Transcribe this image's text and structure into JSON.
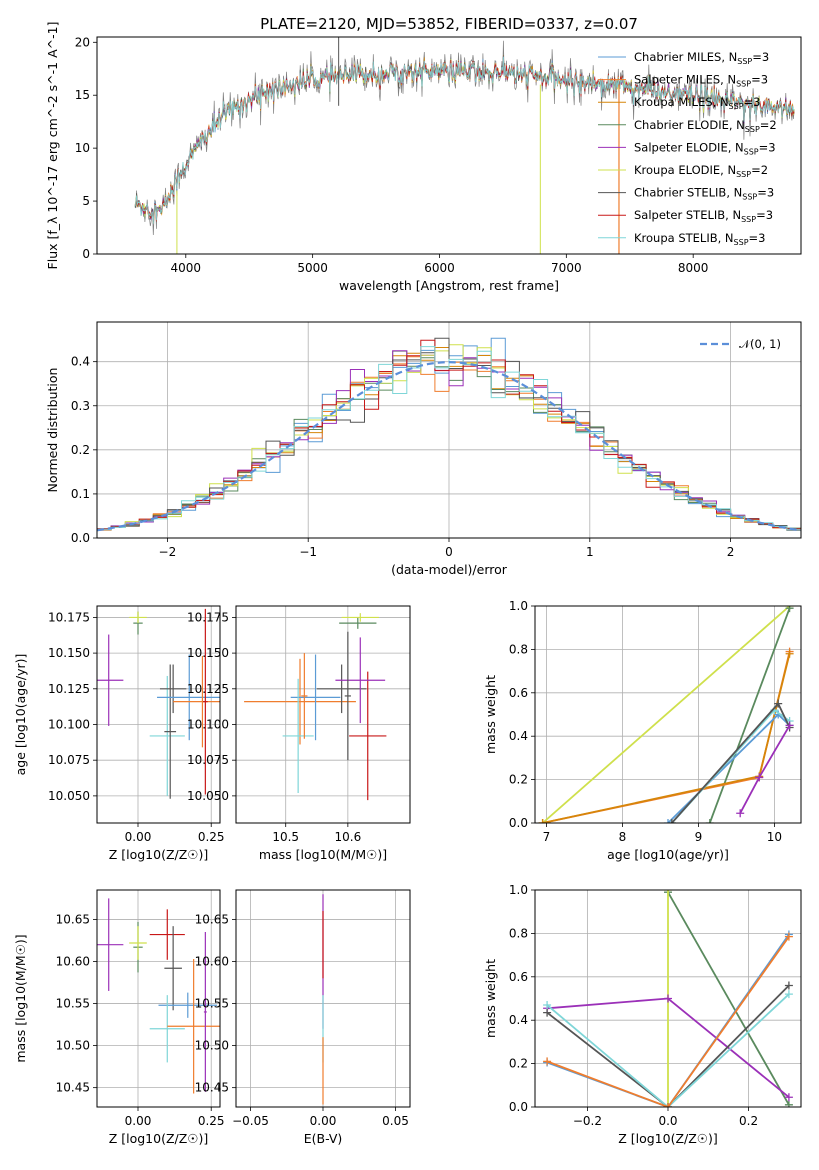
{
  "colors": {
    "chabrier_miles": "#5b9bd5",
    "salpeter_miles": "#ef7d2e",
    "kroupa_miles": "#d6860a",
    "chabrier_elodie": "#5a8a5e",
    "salpeter_elodie": "#9b30b8",
    "kroupa_elodie": "#cfe04c",
    "chabrier_stelib": "#555555",
    "salpeter_stelib": "#c81818",
    "kroupa_stelib": "#7fd6d8",
    "normal": "#5b8fd9"
  },
  "chart_data": [
    {
      "id": "spectrum",
      "type": "line",
      "title": "PLATE=2120, MJD=53852, FIBERID=0337, z=0.07",
      "xlabel": "wavelength [Angstrom, rest frame]",
      "ylabel": "Flux [f_λ 10^-17 erg cm^-2 s^-1 A^-1]",
      "xlim": [
        3300,
        8850
      ],
      "ylim": [
        0,
        20.5
      ],
      "xticks": [
        "4000",
        "5000",
        "6000",
        "7000",
        "8000"
      ],
      "yticks": [
        "0",
        "5",
        "10",
        "15",
        "20"
      ],
      "grid": false,
      "legend_position": "top-right",
      "continuum_x": [
        3600,
        3800,
        3950,
        4100,
        4300,
        4600,
        5000,
        5400,
        6000,
        6500,
        7000,
        7400,
        7800,
        8400,
        8800
      ],
      "continuum_y": [
        4.8,
        3.9,
        7.5,
        10.3,
        13.2,
        15.2,
        16.5,
        17.0,
        17.3,
        17.2,
        16.4,
        16.0,
        15.2,
        14.2,
        13.7
      ],
      "series": [
        {
          "key": "chabrier_miles",
          "name": "Chabrier MILES, N",
          "sub": "SSP",
          "suffix": "=3"
        },
        {
          "key": "salpeter_miles",
          "name": "Salpeter MILES, N",
          "sub": "SSP",
          "suffix": "=3"
        },
        {
          "key": "kroupa_miles",
          "name": "Kroupa MILES, N",
          "sub": "SSP",
          "suffix": "=3"
        },
        {
          "key": "chabrier_elodie",
          "name": "Chabrier ELODIE, N",
          "sub": "SSP",
          "suffix": "=2"
        },
        {
          "key": "salpeter_elodie",
          "name": "Salpeter ELODIE, N",
          "sub": "SSP",
          "suffix": "=3"
        },
        {
          "key": "kroupa_elodie",
          "name": "Kroupa ELODIE, N",
          "sub": "SSP",
          "suffix": "=2"
        },
        {
          "key": "chabrier_stelib",
          "name": "Chabrier STELIB, N",
          "sub": "SSP",
          "suffix": "=3"
        },
        {
          "key": "salpeter_stelib",
          "name": "Salpeter STELIB, N",
          "sub": "SSP",
          "suffix": "=3"
        },
        {
          "key": "kroupa_stelib",
          "name": "Kroupa STELIB, N",
          "sub": "SSP",
          "suffix": "=3"
        }
      ]
    },
    {
      "id": "residuals",
      "type": "step",
      "xlabel": "(data-model)/error",
      "ylabel": "Normed distribution",
      "xlim": [
        -2.5,
        2.5
      ],
      "ylim": [
        0,
        0.49
      ],
      "xticks": [
        "−2",
        "−1",
        "0",
        "1",
        "2"
      ],
      "yticks": [
        "0.0",
        "0.1",
        "0.2",
        "0.3",
        "0.4"
      ],
      "grid": true,
      "legend": "𝒩(0, 1)",
      "legend_position": "top-right",
      "bin_width": 0.1
    },
    {
      "id": "age_vs_Z",
      "type": "errorbar",
      "xlabel": "Z [log10(Z/Z☉)]",
      "ylabel": "age [log10(age/yr)]",
      "xlim": [
        -0.14,
        0.28
      ],
      "ylim": [
        10.031,
        10.183
      ],
      "xticks": [
        "0.00",
        "0.25"
      ],
      "yticks": [
        "10.050",
        "10.075",
        "10.100",
        "10.125",
        "10.150",
        "10.175"
      ],
      "grid": true,
      "points": [
        {
          "key": "salpeter_elodie",
          "x": -0.1,
          "y": 10.131,
          "xerr": 0.05,
          "yerr": 0.032
        },
        {
          "key": "chabrier_elodie",
          "x": 0.0,
          "y": 10.171,
          "xerr": 0.016,
          "yerr": 0.008
        },
        {
          "key": "kroupa_elodie",
          "x": 0.0,
          "y": 10.175,
          "xerr": 0.03,
          "yerr": 0.004
        },
        {
          "key": "kroupa_stelib",
          "x": 0.1,
          "y": 10.092,
          "xerr": 0.06,
          "yerr": 0.042
        },
        {
          "key": "chabrier_stelib",
          "x": 0.12,
          "y": 10.125,
          "xerr": 0.045,
          "yerr": 0.017
        },
        {
          "key": "chabrier_stelib",
          "x": 0.11,
          "y": 10.095,
          "xerr": 0.02,
          "yerr": 0.047
        },
        {
          "key": "chabrier_miles",
          "x": 0.175,
          "y": 10.119,
          "xerr": 0.11,
          "yerr": 0.03
        },
        {
          "key": "salpeter_miles",
          "x": 0.22,
          "y": 10.116,
          "xerr": 0.1,
          "yerr": 0.032
        },
        {
          "key": "salpeter_stelib",
          "x": 0.23,
          "y": 10.116,
          "xerr": 0.008,
          "yerr": 0.065
        }
      ]
    },
    {
      "id": "age_vs_mass",
      "type": "errorbar",
      "xlabel": "mass [log10(M/M☉)]",
      "ylabel": "",
      "xlim": [
        10.42,
        10.7
      ],
      "ylim": [
        10.031,
        10.183
      ],
      "xticks": [
        "10.5",
        "10.6"
      ],
      "yticks": [
        "10.050",
        "10.075",
        "10.100",
        "10.125",
        "10.150",
        "10.175"
      ],
      "grid": true,
      "points": [
        {
          "key": "salpeter_miles",
          "x": 10.523,
          "y": 10.116,
          "xerr": 0.09,
          "yerr": 0.03
        },
        {
          "key": "chabrier_miles",
          "x": 10.548,
          "y": 10.119,
          "xerr": 0.04,
          "yerr": 0.03
        },
        {
          "key": "kroupa_stelib",
          "x": 10.52,
          "y": 10.092,
          "xerr": 0.025,
          "yerr": 0.04
        },
        {
          "key": "chabrier_stelib",
          "x": 10.59,
          "y": 10.125,
          "xerr": 0.04,
          "yerr": 0.017
        },
        {
          "key": "salpeter_stelib",
          "x": 10.632,
          "y": 10.092,
          "xerr": 0.03,
          "yerr": 0.045
        },
        {
          "key": "chabrier_elodie",
          "x": 10.616,
          "y": 10.171,
          "xerr": 0.03,
          "yerr": 0.004
        },
        {
          "key": "kroupa_elodie",
          "x": 10.62,
          "y": 10.175,
          "xerr": 0.03,
          "yerr": 0.003
        },
        {
          "key": "salpeter_elodie",
          "x": 10.62,
          "y": 10.131,
          "xerr": 0.04,
          "yerr": 0.03
        },
        {
          "key": "chabrier_stelib",
          "x": 10.6,
          "y": 10.12,
          "xerr": 0.005,
          "yerr": 0.045
        },
        {
          "key": "salpeter_miles",
          "x": 10.53,
          "y": 10.12,
          "xerr": 0.005,
          "yerr": 0.03
        }
      ]
    },
    {
      "id": "massweight_vs_age",
      "type": "line",
      "xlabel": "age [log10(age/yr)]",
      "ylabel": "mass weight",
      "xlim": [
        6.85,
        10.35
      ],
      "ylim": [
        0,
        1
      ],
      "xticks": [
        "7",
        "8",
        "9",
        "10"
      ],
      "yticks": [
        "0.0",
        "0.2",
        "0.4",
        "0.6",
        "0.8",
        "1.0"
      ],
      "grid": true,
      "series": [
        {
          "key": "kroupa_elodie",
          "x": [
            6.95,
            10.2
          ],
          "y": [
            0.0,
            1.0
          ]
        },
        {
          "key": "chabrier_elodie",
          "x": [
            9.15,
            10.2
          ],
          "y": [
            0.0,
            0.99
          ]
        },
        {
          "key": "salpeter_miles",
          "x": [
            6.95,
            9.8,
            10.2
          ],
          "y": [
            0.0,
            0.21,
            0.79
          ]
        },
        {
          "key": "kroupa_miles",
          "x": [
            6.95,
            9.8,
            10.2
          ],
          "y": [
            0.0,
            0.215,
            0.78
          ]
        },
        {
          "key": "chabrier_miles",
          "x": [
            8.6,
            10.05,
            10.2
          ],
          "y": [
            0.0,
            0.5,
            0.45
          ]
        },
        {
          "key": "kroupa_stelib",
          "x": [
            8.65,
            10.0,
            10.2
          ],
          "y": [
            0.0,
            0.52,
            0.47
          ]
        },
        {
          "key": "chabrier_stelib",
          "x": [
            8.65,
            10.05,
            10.2
          ],
          "y": [
            0.0,
            0.55,
            0.44
          ]
        },
        {
          "key": "salpeter_elodie",
          "x": [
            9.55,
            9.8,
            10.2
          ],
          "y": [
            0.045,
            0.21,
            0.45
          ]
        }
      ]
    },
    {
      "id": "mass_vs_Z",
      "type": "errorbar",
      "xlabel": "Z [log10(Z/Z☉)]",
      "ylabel": "mass [log10(M/M☉)]",
      "xlim": [
        -0.14,
        0.28
      ],
      "ylim": [
        10.427,
        10.685
      ],
      "xticks": [
        "0.00",
        "0.25"
      ],
      "yticks": [
        "10.45",
        "10.50",
        "10.55",
        "10.60",
        "10.65"
      ],
      "grid": true,
      "points": [
        {
          "key": "salpeter_elodie",
          "x": -0.1,
          "y": 10.62,
          "xerr": 0.05,
          "yerr": 0.055
        },
        {
          "key": "chabrier_elodie",
          "x": 0.0,
          "y": 10.617,
          "xerr": 0.016,
          "yerr": 0.03
        },
        {
          "key": "kroupa_elodie",
          "x": 0.0,
          "y": 10.622,
          "xerr": 0.03,
          "yerr": 0.02
        },
        {
          "key": "salpeter_stelib",
          "x": 0.1,
          "y": 10.632,
          "xerr": 0.06,
          "yerr": 0.03
        },
        {
          "key": "chabrier_stelib",
          "x": 0.12,
          "y": 10.592,
          "xerr": 0.03,
          "yerr": 0.05
        },
        {
          "key": "chabrier_miles",
          "x": 0.17,
          "y": 10.548,
          "xerr": 0.1,
          "yerr": 0.015
        },
        {
          "key": "kroupa_stelib",
          "x": 0.1,
          "y": 10.52,
          "xerr": 0.06,
          "yerr": 0.04
        },
        {
          "key": "salpeter_miles",
          "x": 0.19,
          "y": 10.523,
          "xerr": 0.09,
          "yerr": 0.08
        },
        {
          "key": "salpeter_elodie",
          "x": 0.23,
          "y": 10.54,
          "xerr": 0.005,
          "yerr": 0.095
        }
      ]
    },
    {
      "id": "mass_vs_ebv",
      "type": "errorbar",
      "xlabel": "E(B-V)",
      "ylabel": "",
      "xlim": [
        -0.06,
        0.06
      ],
      "ylim": [
        10.427,
        10.685
      ],
      "xticks": [
        "−0.05",
        "0.00",
        "0.05"
      ],
      "yticks": [
        "10.45",
        "10.50",
        "10.55",
        "10.60",
        "10.65"
      ],
      "grid": true,
      "points": [
        {
          "key": "salpeter_elodie",
          "x": 0.0,
          "y": 10.6,
          "xerr": 0.0,
          "yerr": 0.08
        },
        {
          "key": "salpeter_stelib",
          "x": 0.0,
          "y": 10.62,
          "xerr": 0.0,
          "yerr": 0.04
        },
        {
          "key": "kroupa_stelib",
          "x": 0.0,
          "y": 10.52,
          "xerr": 0.0,
          "yerr": 0.04
        },
        {
          "key": "salpeter_miles",
          "x": 0.0,
          "y": 10.47,
          "xerr": 0.0,
          "yerr": 0.04
        }
      ]
    },
    {
      "id": "massweight_vs_Z",
      "type": "line",
      "xlabel": "Z [log10(Z/Z☉)]",
      "ylabel": "mass weight",
      "xlim": [
        -0.33,
        0.33
      ],
      "ylim": [
        0,
        1
      ],
      "xticks": [
        "−0.2",
        "0.0",
        "0.2"
      ],
      "yticks": [
        "0.0",
        "0.2",
        "0.4",
        "0.6",
        "0.8",
        "1.0"
      ],
      "grid": true,
      "series": [
        {
          "key": "chabrier_elodie",
          "x": [
            0.0,
            0.3
          ],
          "y": [
            0.99,
            0.01
          ]
        },
        {
          "key": "kroupa_elodie",
          "x": [
            0.0,
            0.0
          ],
          "y": [
            0.0,
            1.0
          ]
        },
        {
          "key": "salpeter_elodie",
          "x": [
            -0.3,
            0.0,
            0.3
          ],
          "y": [
            0.455,
            0.5,
            0.045
          ]
        },
        {
          "key": "chabrier_stelib",
          "x": [
            -0.3,
            0.0,
            0.3
          ],
          "y": [
            0.435,
            0.0,
            0.56
          ]
        },
        {
          "key": "kroupa_stelib",
          "x": [
            -0.3,
            0.0,
            0.3
          ],
          "y": [
            0.47,
            0.0,
            0.52
          ]
        },
        {
          "key": "chabrier_miles",
          "x": [
            -0.3,
            0.0,
            0.3
          ],
          "y": [
            0.205,
            0.0,
            0.795
          ]
        },
        {
          "key": "salpeter_miles",
          "x": [
            -0.3,
            0.0,
            0.3
          ],
          "y": [
            0.21,
            0.0,
            0.785
          ]
        }
      ]
    }
  ]
}
